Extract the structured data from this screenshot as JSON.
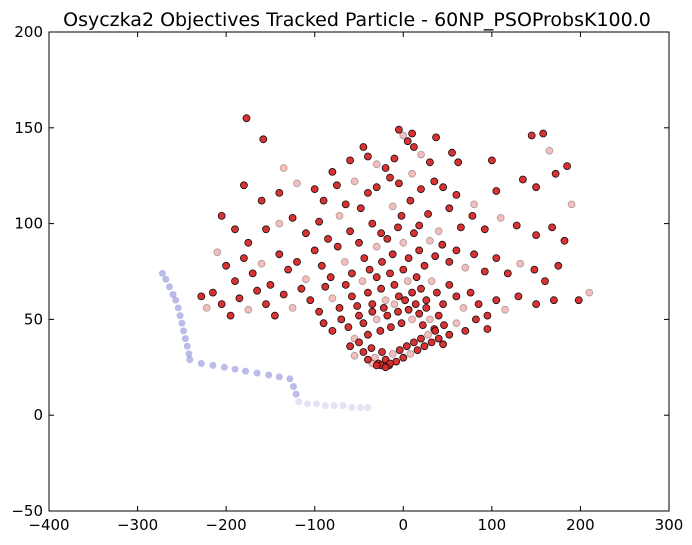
{
  "chart_data": {
    "type": "scatter",
    "title": "Osyczka2 Objectives Tracked Particle - 60NP_PSOProbsK100.0",
    "xlabel": "",
    "ylabel": "",
    "xlim": [
      -400,
      300
    ],
    "ylim": [
      -50,
      200
    ],
    "x_ticks": [
      -400,
      -300,
      -200,
      -100,
      0,
      100,
      200,
      300
    ],
    "y_ticks": [
      -50,
      0,
      50,
      100,
      150,
      200
    ],
    "x_tick_labels": [
      "−400",
      "−300",
      "−200",
      "−100",
      "0",
      "100",
      "200",
      "300"
    ],
    "y_tick_labels": [
      "−50",
      "0",
      "50",
      "100",
      "150",
      "200"
    ],
    "grid": false,
    "legend": "none",
    "series": [
      {
        "color": "#d62728",
        "edge_color": "#000000",
        "description_points": "objective values of swarm particles (dense cluster)",
        "points": [
          [
            -177,
            155
          ],
          [
            -158,
            144
          ],
          [
            -5,
            149
          ],
          [
            0,
            146
          ],
          [
            10,
            147
          ],
          [
            37,
            145
          ],
          [
            145,
            146
          ],
          [
            158,
            147
          ],
          [
            -135,
            129
          ],
          [
            -80,
            127
          ],
          [
            -60,
            133
          ],
          [
            -45,
            140
          ],
          [
            -40,
            135
          ],
          [
            -30,
            131
          ],
          [
            -20,
            129
          ],
          [
            -10,
            134
          ],
          [
            5,
            143
          ],
          [
            12,
            140
          ],
          [
            20,
            136
          ],
          [
            30,
            132
          ],
          [
            55,
            137
          ],
          [
            62,
            132
          ],
          [
            100,
            133
          ],
          [
            165,
            138
          ],
          [
            185,
            130
          ],
          [
            -180,
            120
          ],
          [
            -160,
            112
          ],
          [
            -140,
            116
          ],
          [
            -120,
            121
          ],
          [
            -100,
            118
          ],
          [
            -90,
            112
          ],
          [
            -75,
            120
          ],
          [
            -65,
            110
          ],
          [
            -55,
            122
          ],
          [
            -40,
            116
          ],
          [
            -30,
            119
          ],
          [
            -15,
            124
          ],
          [
            -5,
            121
          ],
          [
            10,
            126
          ],
          [
            20,
            118
          ],
          [
            35,
            122
          ],
          [
            45,
            119
          ],
          [
            60,
            115
          ],
          [
            80,
            110
          ],
          [
            105,
            117
          ],
          [
            135,
            123
          ],
          [
            150,
            119
          ],
          [
            172,
            126
          ],
          [
            190,
            110
          ],
          [
            -205,
            104
          ],
          [
            -190,
            97
          ],
          [
            -175,
            90
          ],
          [
            -155,
            97
          ],
          [
            -140,
            100
          ],
          [
            -125,
            103
          ],
          [
            -110,
            95
          ],
          [
            -95,
            101
          ],
          [
            -85,
            92
          ],
          [
            -72,
            104
          ],
          [
            -60,
            96
          ],
          [
            -48,
            108
          ],
          [
            -35,
            100
          ],
          [
            -25,
            95
          ],
          [
            -12,
            109
          ],
          [
            -2,
            104
          ],
          [
            8,
            112
          ],
          [
            18,
            99
          ],
          [
            28,
            105
          ],
          [
            40,
            96
          ],
          [
            52,
            108
          ],
          [
            65,
            98
          ],
          [
            78,
            104
          ],
          [
            92,
            97
          ],
          [
            110,
            103
          ],
          [
            128,
            99
          ],
          [
            150,
            94
          ],
          [
            168,
            98
          ],
          [
            182,
            91
          ],
          [
            -210,
            85
          ],
          [
            -200,
            78
          ],
          [
            -190,
            70
          ],
          [
            -180,
            82
          ],
          [
            -170,
            74
          ],
          [
            -160,
            79
          ],
          [
            -150,
            68
          ],
          [
            -140,
            84
          ],
          [
            -130,
            76
          ],
          [
            -120,
            80
          ],
          [
            -110,
            71
          ],
          [
            -100,
            86
          ],
          [
            -92,
            78
          ],
          [
            -82,
            72
          ],
          [
            -74,
            88
          ],
          [
            -66,
            80
          ],
          [
            -58,
            74
          ],
          [
            -50,
            90
          ],
          [
            -44,
            82
          ],
          [
            -38,
            76
          ],
          [
            -30,
            88
          ],
          [
            -24,
            80
          ],
          [
            -18,
            92
          ],
          [
            -12,
            84
          ],
          [
            -6,
            98
          ],
          [
            0,
            90
          ],
          [
            6,
            82
          ],
          [
            12,
            95
          ],
          [
            18,
            86
          ],
          [
            24,
            78
          ],
          [
            30,
            91
          ],
          [
            36,
            83
          ],
          [
            44,
            89
          ],
          [
            52,
            80
          ],
          [
            60,
            86
          ],
          [
            70,
            77
          ],
          [
            80,
            84
          ],
          [
            92,
            75
          ],
          [
            105,
            82
          ],
          [
            118,
            74
          ],
          [
            132,
            79
          ],
          [
            148,
            76
          ],
          [
            160,
            70
          ],
          [
            175,
            78
          ],
          [
            -228,
            62
          ],
          [
            -222,
            56
          ],
          [
            -215,
            64
          ],
          [
            -205,
            58
          ],
          [
            -195,
            52
          ],
          [
            -185,
            61
          ],
          [
            -175,
            55
          ],
          [
            -165,
            65
          ],
          [
            -155,
            58
          ],
          [
            -145,
            52
          ],
          [
            -135,
            63
          ],
          [
            -125,
            56
          ],
          [
            -115,
            66
          ],
          [
            -105,
            60
          ],
          [
            -95,
            54
          ],
          [
            -88,
            67
          ],
          [
            -80,
            61
          ],
          [
            -72,
            56
          ],
          [
            -65,
            68
          ],
          [
            -58,
            62
          ],
          [
            -52,
            57
          ],
          [
            -46,
            70
          ],
          [
            -40,
            64
          ],
          [
            -35,
            58
          ],
          [
            -30,
            72
          ],
          [
            -25,
            66
          ],
          [
            -20,
            60
          ],
          [
            -15,
            74
          ],
          [
            -10,
            68
          ],
          [
            -5,
            62
          ],
          [
            0,
            76
          ],
          [
            5,
            70
          ],
          [
            10,
            64
          ],
          [
            15,
            72
          ],
          [
            20,
            66
          ],
          [
            26,
            60
          ],
          [
            32,
            70
          ],
          [
            38,
            64
          ],
          [
            45,
            58
          ],
          [
            52,
            68
          ],
          [
            60,
            62
          ],
          [
            68,
            56
          ],
          [
            76,
            64
          ],
          [
            85,
            58
          ],
          [
            95,
            52
          ],
          [
            105,
            60
          ],
          [
            115,
            55
          ],
          [
            130,
            62
          ],
          [
            150,
            58
          ],
          [
            170,
            60
          ],
          [
            198,
            60
          ],
          [
            210,
            64
          ],
          [
            -90,
            48
          ],
          [
            -80,
            44
          ],
          [
            -70,
            50
          ],
          [
            -62,
            46
          ],
          [
            -55,
            40
          ],
          [
            -50,
            52
          ],
          [
            -45,
            48
          ],
          [
            -40,
            42
          ],
          [
            -35,
            54
          ],
          [
            -30,
            50
          ],
          [
            -26,
            44
          ],
          [
            -22,
            56
          ],
          [
            -18,
            52
          ],
          [
            -14,
            46
          ],
          [
            -10,
            58
          ],
          [
            -6,
            54
          ],
          [
            -2,
            48
          ],
          [
            2,
            60
          ],
          [
            6,
            55
          ],
          [
            10,
            50
          ],
          [
            14,
            58
          ],
          [
            18,
            53
          ],
          [
            22,
            47
          ],
          [
            26,
            56
          ],
          [
            30,
            50
          ],
          [
            35,
            45
          ],
          [
            40,
            52
          ],
          [
            46,
            47
          ],
          [
            52,
            42
          ],
          [
            60,
            48
          ],
          [
            70,
            44
          ],
          [
            82,
            50
          ],
          [
            95,
            45
          ],
          [
            -60,
            36
          ],
          [
            -55,
            31
          ],
          [
            -50,
            38
          ],
          [
            -45,
            33
          ],
          [
            -40,
            29
          ],
          [
            -36,
            35
          ],
          [
            -32,
            30
          ],
          [
            -28,
            27
          ],
          [
            -24,
            33
          ],
          [
            -20,
            29
          ],
          [
            -16,
            26
          ],
          [
            -12,
            32
          ],
          [
            -8,
            28
          ],
          [
            -4,
            34
          ],
          [
            0,
            30
          ],
          [
            4,
            36
          ],
          [
            8,
            32
          ],
          [
            12,
            38
          ],
          [
            16,
            34
          ],
          [
            20,
            40
          ],
          [
            24,
            36
          ],
          [
            28,
            42
          ],
          [
            32,
            38
          ],
          [
            36,
            44
          ],
          [
            40,
            40
          ],
          [
            45,
            37
          ],
          [
            -35,
            27
          ],
          [
            -25,
            26
          ],
          [
            -15,
            27
          ],
          [
            -30,
            26
          ],
          [
            -20,
            25
          ]
        ]
      },
      {
        "color": "#4040c0",
        "description_points": "tracked particle trajectory (faded trail)",
        "points": [
          [
            -272,
            74
          ],
          [
            -268,
            71
          ],
          [
            -264,
            67
          ],
          [
            -260,
            63
          ],
          [
            -257,
            60
          ],
          [
            -254,
            56
          ],
          [
            -252,
            52
          ],
          [
            -250,
            48
          ],
          [
            -248,
            44
          ],
          [
            -246,
            40
          ],
          [
            -244,
            36
          ],
          [
            -242,
            32
          ],
          [
            -241,
            29
          ],
          [
            -228,
            27
          ],
          [
            -215,
            26
          ],
          [
            -202,
            25
          ],
          [
            -190,
            24
          ],
          [
            -178,
            23
          ],
          [
            -165,
            22
          ],
          [
            -152,
            21
          ],
          [
            -140,
            20
          ],
          [
            -128,
            19
          ],
          [
            -124,
            15
          ],
          [
            -121,
            11
          ],
          [
            -118,
            7
          ],
          [
            -108,
            6
          ],
          [
            -98,
            6
          ],
          [
            -88,
            5
          ],
          [
            -78,
            5
          ],
          [
            -68,
            5
          ],
          [
            -58,
            4
          ],
          [
            -48,
            4
          ],
          [
            -40,
            4
          ]
        ]
      }
    ]
  }
}
